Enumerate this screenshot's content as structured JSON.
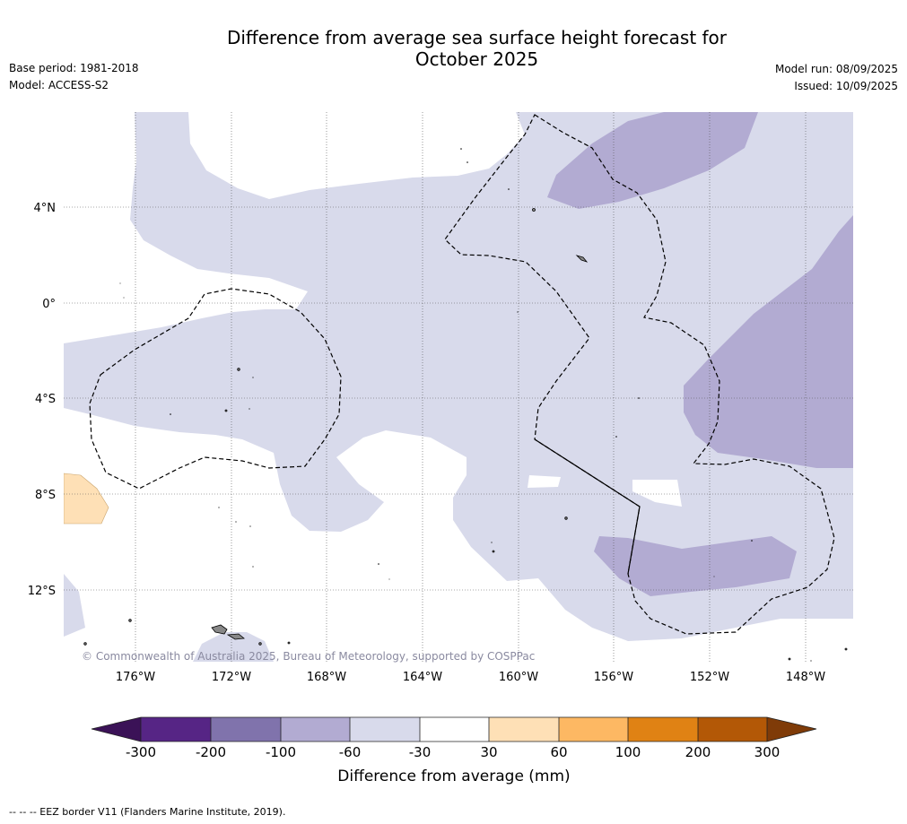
{
  "header": {
    "title_line1": "Difference from average sea surface height forecast for",
    "title_line2": "October 2025",
    "base_period": "Base period: 1981-2018",
    "model": "Model: ACCESS-S2",
    "model_run": "Model run: 08/09/2025",
    "issued": "Issued: 10/09/2025"
  },
  "map": {
    "lat_labels": [
      "4°N",
      "0°",
      "4°S",
      "8°S",
      "12°S"
    ],
    "lon_labels": [
      "176°W",
      "172°W",
      "168°W",
      "164°W",
      "160°W",
      "156°W",
      "152°W",
      "148°W"
    ],
    "copyright": "© Commonwealth of Australia 2025, Bureau of Meteorology, supported by COSPPac"
  },
  "colorbar": {
    "title": "Difference from average (mm)",
    "tick_labels": [
      "-300",
      "-200",
      "-100",
      "-60",
      "-30",
      "30",
      "60",
      "100",
      "200",
      "300"
    ],
    "colors": [
      "#3b1257",
      "#562585",
      "#8073ac",
      "#b2abd2",
      "#d8daeb",
      "#ffffff",
      "#fee0b6",
      "#fdb863",
      "#e08214",
      "#b35806",
      "#7f3b08"
    ]
  },
  "footer": {
    "legend": "--  --  -- EEZ border V11 (Flanders Marine Institute, 2019)."
  }
}
